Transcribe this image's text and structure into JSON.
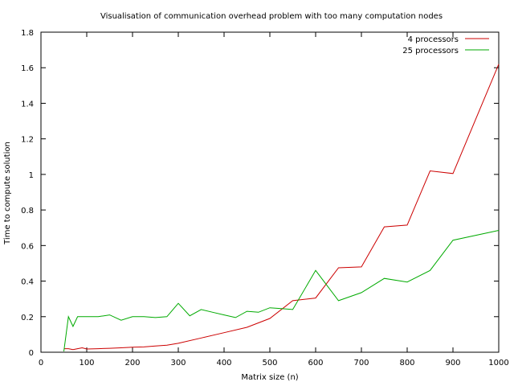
{
  "chart_data": {
    "type": "line",
    "title": "Visualisation of communication overhead problem with too many computation nodes",
    "xlabel": "Matrix size (n)",
    "ylabel": "Time to compute solution",
    "xlim": [
      0,
      1000
    ],
    "ylim": [
      0,
      1.8
    ],
    "xticks": [
      0,
      100,
      200,
      300,
      400,
      500,
      600,
      700,
      800,
      900,
      1000
    ],
    "xtick_labels": [
      "0",
      "100",
      "200",
      "300",
      "400",
      "500",
      "600",
      "700",
      "800",
      "900",
      "1000"
    ],
    "yticks": [
      0,
      0.2,
      0.4,
      0.6,
      0.8,
      1,
      1.2,
      1.4,
      1.6,
      1.8
    ],
    "ytick_labels": [
      "0",
      "0.2",
      "0.4",
      "0.6",
      "0.8",
      "1",
      "1.2",
      "1.4",
      "1.6",
      "1.8"
    ],
    "grid": false,
    "legend": "top-right",
    "series": [
      {
        "name": "4 processors",
        "color": "#cc0000",
        "x": [
          50,
          60,
          70,
          80,
          90,
          100,
          125,
          150,
          175,
          200,
          225,
          250,
          275,
          300,
          350,
          400,
          450,
          500,
          550,
          600,
          650,
          700,
          750,
          800,
          850,
          900,
          1000
        ],
        "y": [
          0.02,
          0.02,
          0.015,
          0.02,
          0.025,
          0.018,
          0.02,
          0.022,
          0.025,
          0.028,
          0.03,
          0.035,
          0.04,
          0.05,
          0.08,
          0.11,
          0.14,
          0.19,
          0.29,
          0.305,
          0.475,
          0.48,
          0.705,
          0.715,
          1.02,
          1.005,
          1.62
        ]
      },
      {
        "name": "25 processors",
        "color": "#00aa00",
        "x": [
          50,
          60,
          70,
          80,
          90,
          100,
          125,
          150,
          175,
          200,
          225,
          250,
          275,
          300,
          325,
          350,
          375,
          400,
          425,
          450,
          475,
          500,
          525,
          550,
          600,
          650,
          700,
          750,
          800,
          850,
          900,
          1000
        ],
        "y": [
          0.005,
          0.2,
          0.145,
          0.2,
          0.2,
          0.2,
          0.2,
          0.21,
          0.18,
          0.2,
          0.2,
          0.195,
          0.2,
          0.275,
          0.205,
          0.24,
          0.225,
          0.21,
          0.195,
          0.23,
          0.225,
          0.25,
          0.245,
          0.24,
          0.46,
          0.29,
          0.335,
          0.415,
          0.395,
          0.46,
          0.63,
          0.685
        ]
      }
    ]
  }
}
